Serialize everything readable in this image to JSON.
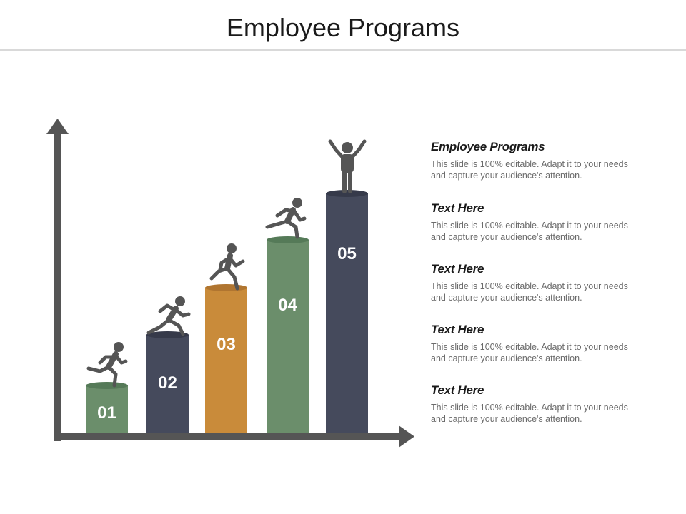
{
  "slide": {
    "title": "Employee Programs"
  },
  "steps": [
    {
      "label": "01",
      "color": "#6b8e6b",
      "top_color": "#557a58",
      "figure": "running-person"
    },
    {
      "label": "02",
      "color": "#454a5c",
      "top_color": "#363a4a",
      "figure": "running-person"
    },
    {
      "label": "03",
      "color": "#c98b3a",
      "top_color": "#b07530",
      "figure": "running-person"
    },
    {
      "label": "04",
      "color": "#6b8e6b",
      "top_color": "#557a58",
      "figure": "running-person"
    },
    {
      "label": "05",
      "color": "#454a5c",
      "top_color": "#363a4a",
      "figure": "celebrating-person"
    }
  ],
  "items": [
    {
      "heading": "Employee Programs",
      "body": "This slide is 100% editable. Adapt it to your needs and capture your audience's attention."
    },
    {
      "heading": "Text Here",
      "body": "This slide is 100% editable. Adapt it to your needs and capture your audience's attention."
    },
    {
      "heading": "Text Here",
      "body": "This slide is 100% editable. Adapt it to your needs and capture your audience's attention."
    },
    {
      "heading": "Text Here",
      "body": "This slide is 100% editable. Adapt it to your needs and capture your audience's attention."
    },
    {
      "heading": "Text Here",
      "body": "This slide is 100% editable. Adapt it to your needs and capture your audience's attention."
    }
  ],
  "colors": {
    "axis": "#555555",
    "figure": "#555555"
  }
}
